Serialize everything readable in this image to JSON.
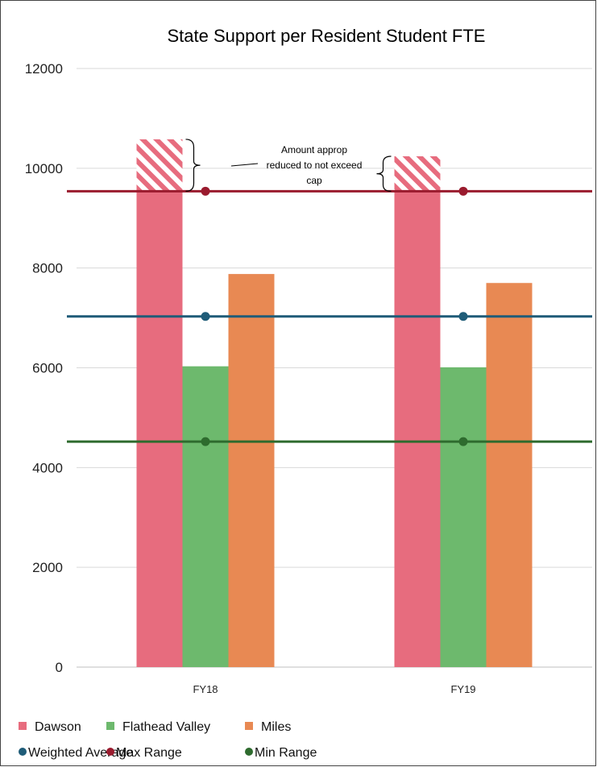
{
  "chart_data": {
    "type": "bar",
    "title": "State Support per Resident Student FTE",
    "xlabel": "",
    "ylabel": "",
    "categories": [
      "FY18",
      "FY19"
    ],
    "ylim": [
      0,
      12000
    ],
    "yticks": [
      0,
      2000,
      4000,
      6000,
      8000,
      10000,
      12000
    ],
    "grid": true,
    "legend_position": "bottom",
    "series": [
      {
        "name": "Dawson",
        "values": [
          9540,
          9540
        ],
        "color": "#E76C7E"
      },
      {
        "name": "Flathead Valley",
        "values": [
          6030,
          6010
        ],
        "color": "#6DB96D"
      },
      {
        "name": "Miles",
        "values": [
          7880,
          7700
        ],
        "color": "#E88953"
      }
    ],
    "reference_lines": [
      {
        "name": "Weighted Average",
        "value": 7030,
        "color": "#1F5C78"
      },
      {
        "name": "Max Range",
        "value": 9540,
        "color": "#9A1B2E"
      },
      {
        "name": "Min Range",
        "value": 4520,
        "color": "#2E6B2E"
      }
    ],
    "reduced_amount": {
      "series": "Dawson",
      "top_values": [
        10580,
        10240
      ],
      "color": "#E76C7E"
    },
    "annotation": [
      "Amount approp",
      "reduced to not exceed",
      "cap"
    ]
  }
}
